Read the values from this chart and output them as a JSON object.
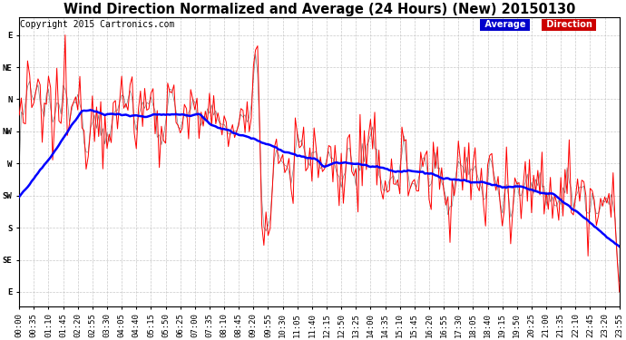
{
  "title": "Wind Direction Normalized and Average (24 Hours) (New) 20150130",
  "copyright": "Copyright 2015 Cartronics.com",
  "background_color": "#ffffff",
  "plot_bg_color": "#ffffff",
  "grid_color": "#bbbbbb",
  "y_labels": [
    "E",
    "NE",
    "N",
    "NW",
    "W",
    "SW",
    "S",
    "SE",
    "E"
  ],
  "y_values": [
    360,
    315,
    270,
    225,
    180,
    135,
    90,
    45,
    0
  ],
  "y_lim": [
    -20,
    385
  ],
  "line_color_direction": "#ff0000",
  "line_color_average": "#0000ff",
  "line_color_raw": "#000000",
  "title_fontsize": 10.5,
  "copyright_fontsize": 7,
  "tick_fontsize": 6.5,
  "avg_legend_bg": "#0000cc",
  "dir_legend_bg": "#cc0000"
}
